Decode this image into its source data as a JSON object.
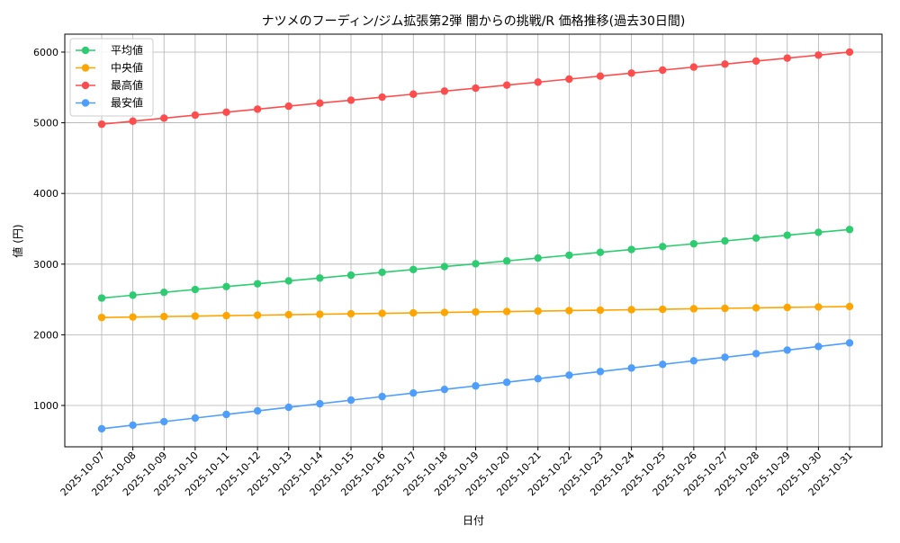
{
  "chart_data": {
    "type": "line",
    "title": "ナツメのフーディン/ジム拡張第2弾 闇からの挑戦/R 価格推移(過去30日間)",
    "xlabel": "日付",
    "ylabel": "値 (円)",
    "ylim": [
      415,
      6254
    ],
    "yticks": [
      1000,
      2000,
      3000,
      4000,
      5000,
      6000
    ],
    "grid": true,
    "legend": "top-left",
    "categories": [
      "2025-10-07",
      "2025-10-08",
      "2025-10-09",
      "2025-10-10",
      "2025-10-11",
      "2025-10-12",
      "2025-10-13",
      "2025-10-14",
      "2025-10-15",
      "2025-10-16",
      "2025-10-17",
      "2025-10-18",
      "2025-10-19",
      "2025-10-20",
      "2025-10-21",
      "2025-10-22",
      "2025-10-23",
      "2025-10-24",
      "2025-10-25",
      "2025-10-26",
      "2025-10-27",
      "2025-10-28",
      "2025-10-29",
      "2025-10-30",
      "2025-10-31"
    ],
    "series": [
      {
        "name": "平均値",
        "color": "#2ecc71",
        "values": [
          2520,
          2560,
          2601,
          2641,
          2682,
          2722,
          2763,
          2803,
          2843,
          2884,
          2924,
          2965,
          3005,
          3045,
          3086,
          3126,
          3167,
          3207,
          3248,
          3288,
          3328,
          3369,
          3409,
          3450,
          3490
        ]
      },
      {
        "name": "中央値",
        "color": "#ffa500",
        "values": [
          2245,
          2251,
          2258,
          2264,
          2271,
          2277,
          2284,
          2290,
          2297,
          2303,
          2310,
          2316,
          2323,
          2329,
          2335,
          2342,
          2348,
          2355,
          2361,
          2368,
          2374,
          2381,
          2387,
          2394,
          2400
        ]
      },
      {
        "name": "最高値",
        "color": "#ff4d4d",
        "values": [
          4980,
          5023,
          5065,
          5108,
          5150,
          5193,
          5235,
          5278,
          5320,
          5363,
          5405,
          5448,
          5490,
          5533,
          5575,
          5618,
          5660,
          5703,
          5745,
          5788,
          5830,
          5873,
          5915,
          5958,
          6000
        ]
      },
      {
        "name": "最安値",
        "color": "#4d9eff",
        "values": [
          670,
          721,
          771,
          822,
          873,
          923,
          974,
          1024,
          1075,
          1126,
          1176,
          1227,
          1277,
          1328,
          1379,
          1429,
          1480,
          1530,
          1581,
          1632,
          1682,
          1733,
          1783,
          1834,
          1885
        ]
      }
    ]
  }
}
